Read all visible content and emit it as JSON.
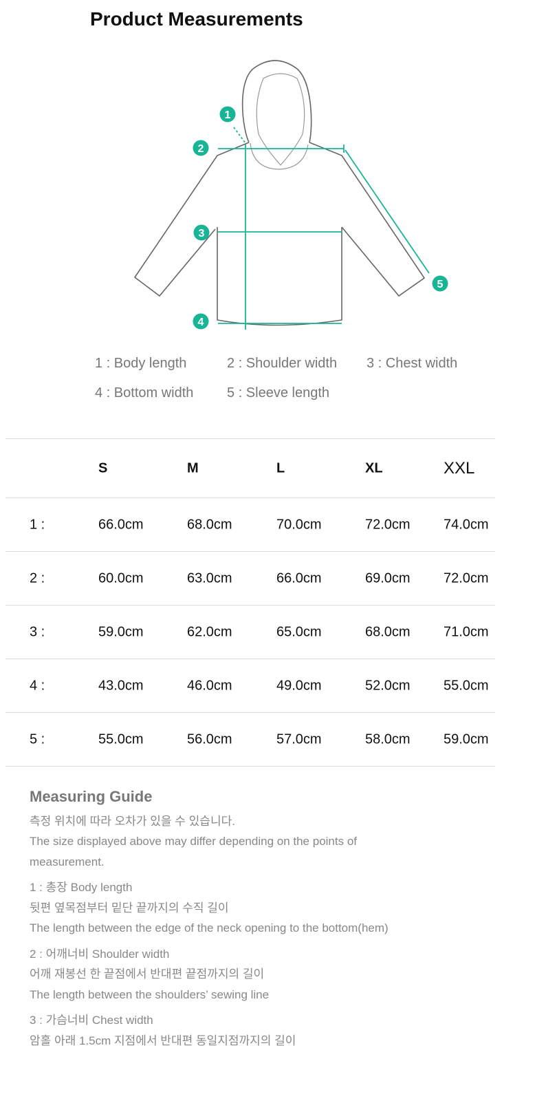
{
  "title": "Product Measurements",
  "accent_color": "#17b596",
  "outline_color": "#666666",
  "diagram_markers": [
    "1",
    "2",
    "3",
    "4",
    "5"
  ],
  "legend": [
    "1 : Body length",
    "2 : Shoulder width",
    "3 : Chest width",
    "4 : Bottom width",
    "5 : Sleeve length"
  ],
  "table": {
    "headers": [
      "",
      "S",
      "M",
      "L",
      "XL",
      "XXL"
    ],
    "rows": [
      [
        "1 :",
        "66.0cm",
        "68.0cm",
        "70.0cm",
        "72.0cm",
        "74.0cm"
      ],
      [
        "2 :",
        "60.0cm",
        "63.0cm",
        "66.0cm",
        "69.0cm",
        "72.0cm"
      ],
      [
        "3 :",
        "59.0cm",
        "62.0cm",
        "65.0cm",
        "68.0cm",
        "71.0cm"
      ],
      [
        "4 :",
        "43.0cm",
        "46.0cm",
        "49.0cm",
        "52.0cm",
        "55.0cm"
      ],
      [
        "5 :",
        "55.0cm",
        "56.0cm",
        "57.0cm",
        "58.0cm",
        "59.0cm"
      ]
    ]
  },
  "guide": {
    "title": "Measuring Guide",
    "intro": [
      "측정 위치에 따라 오차가 있을 수 있습니다.",
      "The size displayed above may differ depending on the points of measurement."
    ],
    "items": [
      [
        "1 : 총장 Body length",
        "뒷편 옆목점부터 밑단 끝까지의 수직 길이",
        "The length between the edge of the neck opening to the bottom(hem)"
      ],
      [
        "2 : 어깨너비 Shoulder width",
        "어깨 재봉선 한 끝점에서 반대편 끝점까지의 길이",
        "The length between the shoulders’ sewing line"
      ],
      [
        "3 : 가슴너비 Chest width",
        "암홀 아래 1.5cm 지점에서 반대편 동일지점까지의 길이"
      ]
    ]
  }
}
